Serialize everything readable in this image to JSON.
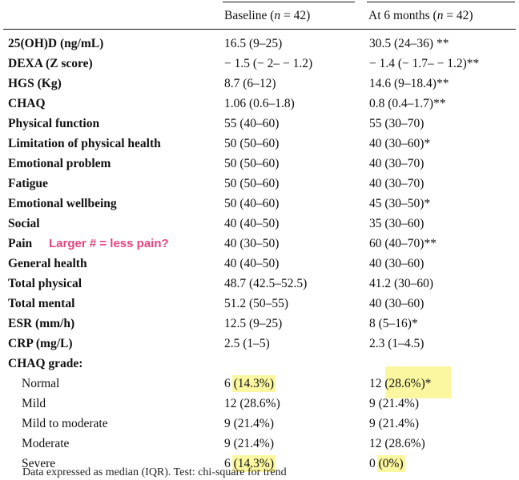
{
  "header": {
    "baseline_label": "Baseline (",
    "baseline_n": "n",
    "baseline_rest": " = 42)",
    "sixmo_label": "At 6 months (",
    "sixmo_n": "n",
    "sixmo_rest": " = 42)"
  },
  "rows": [
    {
      "label": "25(OH)D (ng/mL)",
      "baseline": "16.5 (9–25)",
      "six_months": "30.5 (24–36) **"
    },
    {
      "label": "DEXA (Z score)",
      "baseline": "− 1.5 (− 2– − 1.2)",
      "six_months": "− 1.4 (− 1.7– − 1.2)**"
    },
    {
      "label": "HGS (Kg)",
      "baseline": "8.7 (6–12)",
      "six_months": "14.6 (9–18.4)**"
    },
    {
      "label": "CHAQ",
      "baseline": "1.06 (0.6–1.8)",
      "six_months": "0.8 (0.4–1.7)**"
    },
    {
      "label": "Physical function",
      "baseline": "55 (40–60)",
      "six_months": "55 (30–70)"
    },
    {
      "label": "Limitation of physical health",
      "baseline": "50 (50–60)",
      "six_months": "40 (30–60)*"
    },
    {
      "label": "Emotional problem",
      "baseline": "50 (50–60)",
      "six_months": "40 (30–70)"
    },
    {
      "label": "Fatigue",
      "baseline": "50 (50–60)",
      "six_months": "40 (30–70)"
    },
    {
      "label": "Emotional wellbeing",
      "baseline": "50 (40–60)",
      "six_months": "45 (30–50)*"
    },
    {
      "label": "Social",
      "baseline": "40 (40–50)",
      "six_months": "35 (30–60)"
    },
    {
      "label": "Pain",
      "baseline": "40 (30–50)",
      "six_months": "60 (40–70)**"
    },
    {
      "label": "General health",
      "baseline": "40 (40–50)",
      "six_months": "40 (30–60)"
    },
    {
      "label": "Total physical",
      "baseline": "48.7 (42.5–52.5)",
      "six_months": "41.2 (30–60)"
    },
    {
      "label": "Total mental",
      "baseline": "51.2 (50–55)",
      "six_months": "40 (30–60)"
    },
    {
      "label": "ESR (mm/h)",
      "baseline": "12.5 (9–25)",
      "six_months": "8 (5–16)*"
    },
    {
      "label": "CRP (mg/L)",
      "baseline": "2.5 (1–5)",
      "six_months": "2.3 (1–4.5)"
    },
    {
      "label": "CHAQ grade:",
      "baseline": "",
      "six_months": ""
    }
  ],
  "chaq_grades": [
    {
      "label": "Normal",
      "baseline_n": "6 ",
      "baseline_pct": "(14.3%)",
      "six_n": "12 ",
      "six_pct": "(28.6%)*"
    },
    {
      "label": "Mild",
      "baseline_n": "12 ",
      "baseline_pct": "(28.6%)",
      "six_n": "9 ",
      "six_pct": "(21.4%)"
    },
    {
      "label": "Mild to moderate",
      "baseline_n": "9 ",
      "baseline_pct": "(21.4%)",
      "six_n": "9 ",
      "six_pct": "(21.4%)"
    },
    {
      "label": "Moderate",
      "baseline_n": "9 ",
      "baseline_pct": "(21.4%)",
      "six_n": "12 ",
      "six_pct": "(28.6%)"
    },
    {
      "label": "Severe",
      "baseline_n": "6 ",
      "baseline_pct": "(14.3%)",
      "six_n": "0 ",
      "six_pct": "(0%)"
    }
  ],
  "annotation": {
    "note": "Larger # = less pain?",
    "color": "#e3457e",
    "highlight_color": "#fbf7a0"
  },
  "footnote": "Data expressed as median (IQR). Test: chi-square for trend"
}
